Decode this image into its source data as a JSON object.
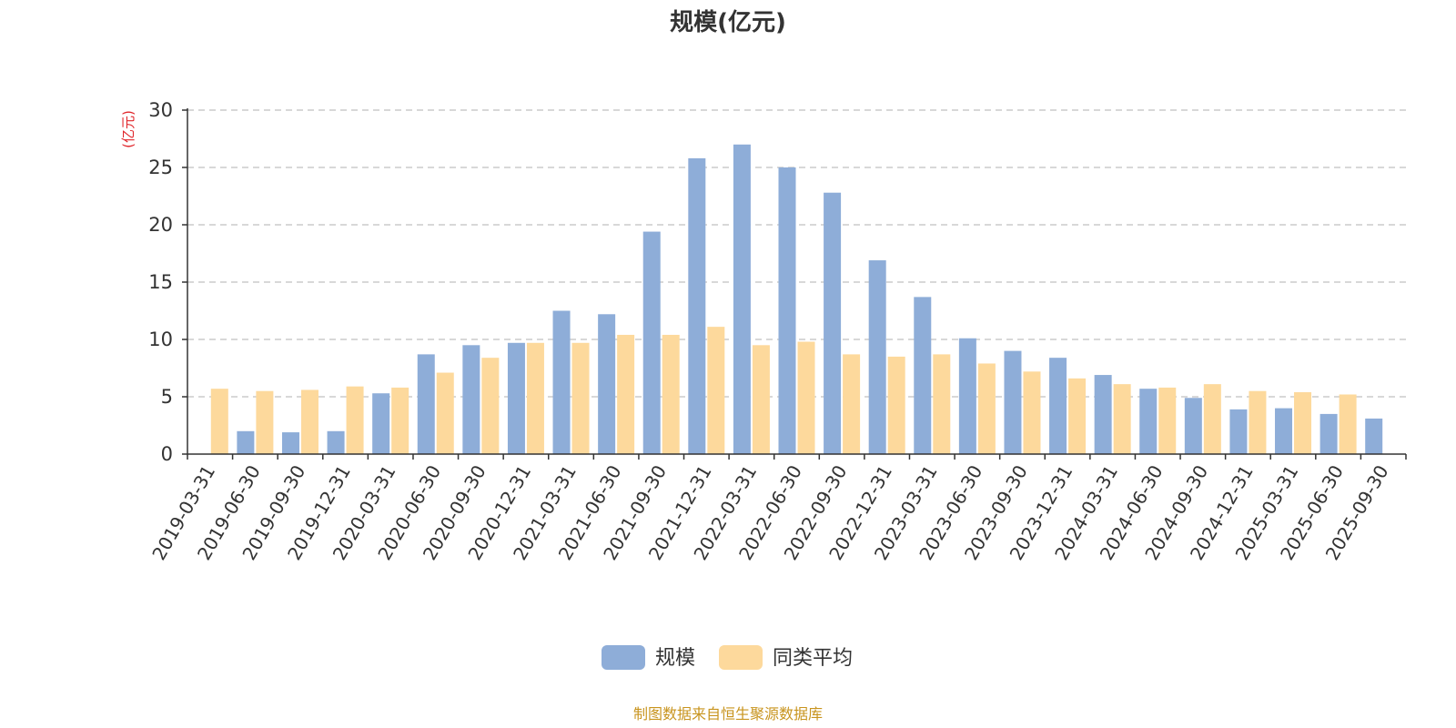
{
  "chart_data": {
    "type": "bar",
    "title": "规模(亿元)",
    "ylabel": "(亿元)",
    "xlabel": "",
    "ylim": [
      0,
      30
    ],
    "yticks": [
      0,
      5,
      10,
      15,
      20,
      25,
      30
    ],
    "grid": true,
    "legend_position": "bottom-center",
    "categories": [
      "2019-03-31",
      "2019-06-30",
      "2019-09-30",
      "2019-12-31",
      "2020-03-31",
      "2020-06-30",
      "2020-09-30",
      "2020-12-31",
      "2021-03-31",
      "2021-06-30",
      "2021-09-30",
      "2021-12-31",
      "2022-03-31",
      "2022-06-30",
      "2022-09-30",
      "2022-12-31",
      "2023-03-31",
      "2023-06-30",
      "2023-09-30",
      "2023-12-31",
      "2024-03-31",
      "2024-06-30",
      "2024-09-30",
      "2024-12-31",
      "2025-03-31",
      "2025-06-30",
      "2025-09-30"
    ],
    "series": [
      {
        "name": "规模",
        "color": "#8eadd8",
        "values": [
          null,
          2.0,
          1.9,
          2.0,
          5.3,
          8.7,
          9.5,
          9.7,
          12.5,
          12.2,
          19.4,
          25.8,
          27.0,
          25.0,
          22.8,
          16.9,
          13.7,
          10.1,
          9.0,
          8.4,
          6.9,
          5.7,
          4.9,
          3.9,
          4.0,
          3.5,
          3.1
        ]
      },
      {
        "name": "同类平均",
        "color": "#fdd99c",
        "values": [
          5.7,
          5.5,
          5.6,
          5.9,
          5.8,
          7.1,
          8.4,
          9.7,
          9.7,
          10.4,
          10.4,
          11.1,
          9.5,
          9.8,
          8.7,
          8.5,
          8.7,
          7.9,
          7.2,
          6.6,
          6.1,
          5.8,
          6.1,
          5.5,
          5.4,
          5.2,
          null
        ]
      }
    ],
    "source_note": "制图数据来自恒生聚源数据库",
    "colors": {
      "axis": "#333333",
      "grid": "#cccccc",
      "unit_label": "#e0262b",
      "source": "#c8941e"
    }
  }
}
